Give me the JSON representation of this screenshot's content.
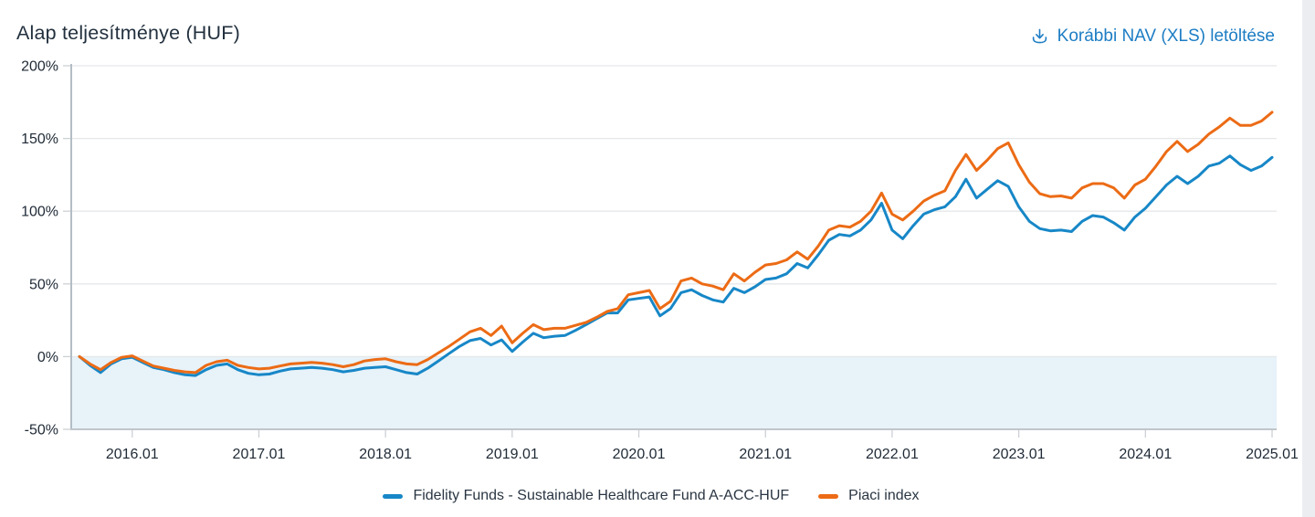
{
  "header": {
    "title": "Alap teljesítménye (HUF)",
    "download_link_label": "Korábbi NAV (XLS) letöltése"
  },
  "colors": {
    "fund_line": "#1787c7",
    "index_line": "#ec6b15",
    "link": "#1d7dc4",
    "plot_band": "#e7f2f9",
    "title_text": "#22303e",
    "axis_label": "#1f2a36"
  },
  "chart_data": {
    "type": "line",
    "title": "Alap teljesítménye (HUF)",
    "xlabel": "",
    "ylabel": "",
    "ylim": [
      -50,
      200
    ],
    "y_ticks": [
      200,
      150,
      100,
      50,
      0,
      -50
    ],
    "y_tick_labels": [
      "200%",
      "150%",
      "100%",
      "50%",
      "0%",
      "-50%"
    ],
    "x_tick_labels": [
      "2016.01",
      "2017.01",
      "2018.01",
      "2019.01",
      "2020.01",
      "2021.01",
      "2022.01",
      "2023.01",
      "2024.01",
      "2025.01"
    ],
    "x_start_month": "2015.08",
    "x_interval": "monthly",
    "grid": true,
    "legend_position": "bottom",
    "plot_band": {
      "from": -50,
      "to": 0
    },
    "series": [
      {
        "name": "Fidelity Funds - Sustainable Healthcare Fund A-ACC-HUF",
        "color": "#1787c7",
        "values": [
          0,
          -6,
          -11,
          -5,
          -1.5,
          -0.5,
          -4,
          -7.5,
          -9,
          -11,
          -12.5,
          -13,
          -9,
          -6,
          -5,
          -9,
          -11.5,
          -12.5,
          -12,
          -10,
          -8.5,
          -8,
          -7.5,
          -8,
          -9,
          -10.5,
          -9.5,
          -8,
          -7.5,
          -7,
          -9,
          -11,
          -12,
          -8,
          -3,
          2,
          7,
          11,
          12.5,
          8,
          11.5,
          3.5,
          10,
          16,
          13,
          14,
          14.5,
          18,
          22,
          26,
          30,
          30,
          39,
          40,
          41,
          28,
          33,
          44,
          46,
          42,
          39,
          37.5,
          47,
          44,
          48,
          53,
          54,
          57,
          64,
          61,
          70,
          80,
          84,
          83,
          87,
          94,
          105.5,
          87,
          81,
          90,
          98,
          101,
          103,
          110,
          122,
          109,
          115,
          121,
          117,
          103,
          93,
          88,
          86.5,
          87,
          86,
          93,
          97,
          96,
          92,
          87,
          96,
          102,
          110,
          118,
          124,
          119,
          124,
          131,
          133,
          138,
          132,
          128,
          131,
          137
        ]
      },
      {
        "name": "Piaci index",
        "color": "#ec6b15",
        "values": [
          0,
          -5,
          -9,
          -4,
          -0.5,
          0.5,
          -3,
          -6.5,
          -8,
          -9.5,
          -10.5,
          -11,
          -6,
          -3.5,
          -2.5,
          -6,
          -7.5,
          -8.5,
          -8,
          -6.5,
          -5,
          -4.5,
          -4,
          -4.5,
          -5.5,
          -7,
          -5.5,
          -3,
          -2,
          -1.5,
          -3.5,
          -5,
          -5.5,
          -2,
          2.5,
          7,
          12,
          17,
          19.5,
          14.5,
          21,
          9.5,
          16,
          22,
          18.5,
          19.5,
          19.5,
          21.5,
          23.5,
          27,
          31,
          33,
          42.5,
          44,
          45.5,
          33,
          38,
          52,
          54,
          50,
          48.5,
          46,
          57,
          52,
          58,
          63,
          64,
          66.5,
          72,
          67,
          76,
          87,
          90,
          89,
          93,
          100,
          112.5,
          98,
          94,
          100,
          107,
          111,
          114,
          128,
          139,
          128,
          135,
          143,
          147,
          132,
          120,
          112,
          110,
          110.5,
          109,
          116,
          119,
          119,
          116,
          109,
          118,
          122,
          131,
          141,
          148,
          141,
          146,
          153,
          158,
          164,
          159,
          159,
          162,
          168
        ]
      }
    ]
  }
}
